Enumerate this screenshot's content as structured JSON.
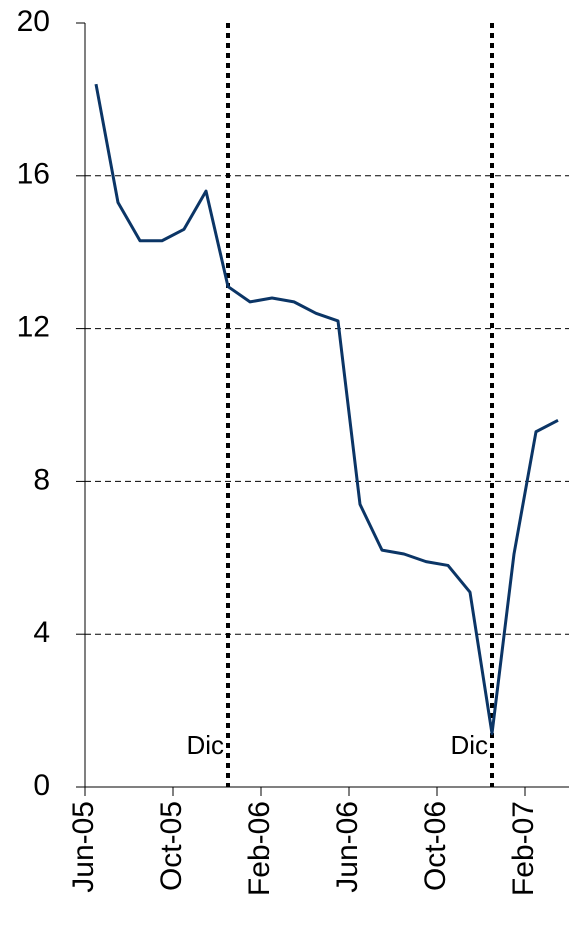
{
  "chart_data": {
    "type": "line",
    "categories": [
      "Jun-05",
      null,
      null,
      null,
      "Oct-05",
      null,
      null,
      null,
      "Feb-06",
      null,
      null,
      null,
      "Jun-06",
      null,
      null,
      null,
      "Oct-06",
      null,
      null,
      null,
      "Feb-07",
      null
    ],
    "series": [
      {
        "color": "#0b3566",
        "values": [
          18.4,
          15.3,
          14.3,
          14.3,
          14.6,
          15.6,
          13.1,
          12.7,
          12.8,
          12.7,
          12.4,
          12.2,
          7.4,
          6.2,
          6.1,
          5.9,
          5.8,
          5.1,
          1.4,
          6.1,
          9.3,
          9.6
        ]
      }
    ],
    "ylim": [
      0,
      20
    ],
    "yticks": [
      0,
      4,
      8,
      12,
      16,
      20
    ],
    "grid": true,
    "annotations": [
      {
        "text": "Dic",
        "at": 6
      },
      {
        "text": "Dic",
        "at": 18
      }
    ]
  }
}
